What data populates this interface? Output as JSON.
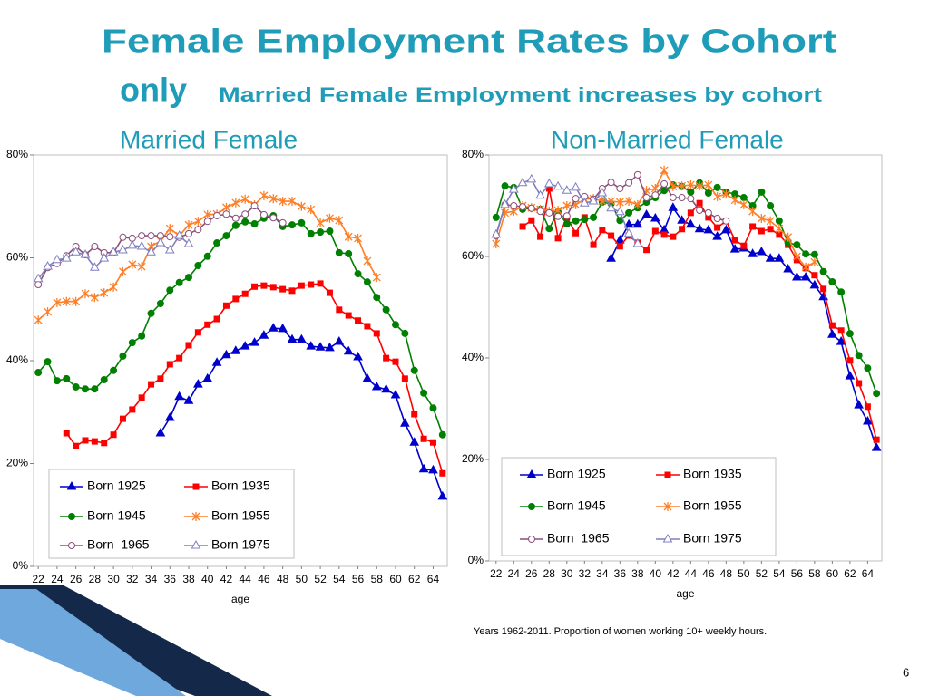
{
  "header": {
    "title": "Female Employment Rates by Cohort",
    "title_line2": "only",
    "subtitle": "Married Female Employment increases by cohort"
  },
  "footnote": "Years 1962-2011. Proportion of women working 10+ weekly hours.",
  "page_number": "6",
  "chart_data": [
    {
      "type": "line",
      "title": "Married Female",
      "x_label": "age",
      "x": [
        22,
        23,
        24,
        25,
        26,
        27,
        28,
        29,
        30,
        31,
        32,
        33,
        34,
        35,
        36,
        37,
        38,
        39,
        40,
        41,
        42,
        43,
        44,
        45,
        46,
        47,
        48,
        49,
        50,
        51,
        52,
        53,
        54,
        55,
        56,
        57,
        58,
        59,
        60,
        61,
        62,
        63,
        64,
        65
      ],
      "xlim": [
        21.5,
        65.5
      ],
      "xticks": [
        22,
        24,
        26,
        28,
        30,
        32,
        34,
        36,
        38,
        40,
        42,
        44,
        46,
        48,
        50,
        52,
        54,
        56,
        58,
        60,
        62,
        64
      ],
      "ylim": [
        0,
        80
      ],
      "yticks": [
        {
          "value": 0,
          "label": "0%"
        },
        {
          "value": 20,
          "label": "20%"
        },
        {
          "value": 40,
          "label": "40%"
        },
        {
          "value": 60,
          "label": "60%"
        },
        {
          "value": 80,
          "label": "80%"
        }
      ],
      "grid": false,
      "legend": "lower-left",
      "series": [
        {
          "name": "Born 1925",
          "color": "#0000cc",
          "marker": "triangle",
          "values": [
            null,
            null,
            null,
            null,
            null,
            null,
            null,
            null,
            null,
            null,
            null,
            null,
            null,
            25.9,
            28.9,
            33.0,
            32.2,
            35.4,
            36.5,
            39.6,
            41.1,
            41.9,
            42.8,
            43.5,
            44.9,
            46.3,
            46.2,
            44.1,
            44.1,
            42.8,
            42.6,
            42.5,
            43.7,
            41.8,
            40.7,
            36.5,
            34.9,
            34.4,
            33.3,
            27.8,
            24.1,
            18.9,
            18.7,
            13.6
          ]
        },
        {
          "name": "Born 1935",
          "color": "#ff0000",
          "marker": "square",
          "values": [
            null,
            null,
            null,
            25.9,
            23.4,
            24.5,
            24.3,
            24.0,
            25.6,
            28.7,
            30.5,
            32.8,
            35.4,
            36.5,
            39.3,
            40.5,
            43.0,
            45.5,
            47.0,
            48.1,
            50.7,
            52.0,
            53.0,
            54.4,
            54.6,
            54.3,
            53.9,
            53.6,
            54.6,
            54.8,
            55.0,
            53.2,
            49.9,
            48.8,
            47.8,
            46.7,
            45.3,
            40.5,
            39.8,
            36.5,
            29.6,
            24.8,
            24.1,
            18.1
          ]
        },
        {
          "name": "Born 1945",
          "color": "#008000",
          "marker": "circle",
          "values": [
            37.7,
            39.8,
            36.1,
            36.5,
            34.9,
            34.5,
            34.5,
            36.3,
            38.1,
            40.9,
            43.5,
            44.8,
            49.2,
            51.1,
            53.7,
            55.2,
            56.2,
            58.5,
            60.3,
            62.9,
            64.3,
            66.3,
            67.0,
            66.6,
            67.7,
            68.2,
            66.1,
            66.4,
            66.8,
            64.7,
            65.0,
            65.2,
            61.0,
            60.8,
            56.9,
            55.3,
            52.3,
            49.9,
            47.0,
            45.3,
            38.1,
            33.7,
            30.8,
            25.6
          ]
        },
        {
          "name": "Born 1955",
          "color": "#ff7f27",
          "marker": "star",
          "values": [
            47.9,
            49.5,
            51.3,
            51.5,
            51.5,
            53.0,
            52.3,
            53.2,
            54.3,
            57.3,
            58.7,
            58.3,
            62.2,
            63.3,
            65.7,
            64.3,
            66.4,
            67.1,
            68.4,
            68.5,
            69.8,
            70.7,
            71.4,
            70.3,
            72.1,
            71.5,
            71.0,
            71.0,
            70.0,
            69.4,
            66.8,
            67.7,
            67.3,
            64.1,
            63.8,
            59.4,
            56.2,
            null,
            null,
            null,
            null,
            null,
            null,
            null
          ]
        },
        {
          "name": "Born  1965",
          "color": "#8b4f7a",
          "marker": "open-circle",
          "values": [
            54.8,
            58.1,
            58.9,
            60.4,
            62.2,
            60.6,
            62.2,
            61.0,
            61.0,
            64.0,
            63.8,
            64.3,
            64.3,
            64.3,
            64.1,
            64.0,
            64.7,
            65.5,
            67.1,
            68.2,
            68.5,
            67.7,
            68.5,
            70.1,
            68.4,
            67.8,
            66.8,
            null,
            null,
            null,
            null,
            null,
            null,
            null,
            null,
            null,
            null,
            null,
            null,
            null,
            null,
            null,
            null,
            null
          ]
        },
        {
          "name": "Born 1975",
          "color": "#7f7fbf",
          "marker": "open-triangle",
          "values": [
            55.9,
            58.3,
            59.6,
            59.9,
            61.1,
            60.6,
            58.1,
            59.9,
            61.1,
            61.5,
            62.4,
            62.2,
            61.1,
            62.9,
            61.5,
            64.3,
            62.7,
            null,
            null,
            null,
            null,
            null,
            null,
            null,
            null,
            null,
            null,
            null,
            null,
            null,
            null,
            null,
            null,
            null,
            null,
            null,
            null,
            null,
            null,
            null,
            null,
            null,
            null,
            null
          ]
        }
      ]
    },
    {
      "type": "line",
      "title": "Non-Married Female",
      "x_label": "age",
      "x": [
        22,
        23,
        24,
        25,
        26,
        27,
        28,
        29,
        30,
        31,
        32,
        33,
        34,
        35,
        36,
        37,
        38,
        39,
        40,
        41,
        42,
        43,
        44,
        45,
        46,
        47,
        48,
        49,
        50,
        51,
        52,
        53,
        54,
        55,
        56,
        57,
        58,
        59,
        60,
        61,
        62,
        63,
        64,
        65
      ],
      "xlim": [
        21.2,
        65.6
      ],
      "xticks": [
        22,
        24,
        26,
        28,
        30,
        32,
        34,
        36,
        38,
        40,
        42,
        44,
        46,
        48,
        50,
        52,
        54,
        56,
        58,
        60,
        62,
        64
      ],
      "ylim": [
        0,
        80
      ],
      "yticks": [
        {
          "value": 0,
          "label": "0%"
        },
        {
          "value": 20,
          "label": "20%"
        },
        {
          "value": 40,
          "label": "40%"
        },
        {
          "value": 60,
          "label": "60%"
        },
        {
          "value": 80,
          "label": "80%"
        }
      ],
      "grid": false,
      "legend": "lower-left",
      "series": [
        {
          "name": "Born 1925",
          "color": "#0000cc",
          "marker": "triangle",
          "values": [
            null,
            null,
            null,
            null,
            null,
            null,
            null,
            null,
            null,
            null,
            null,
            null,
            null,
            59.6,
            63.2,
            66.3,
            66.3,
            68.2,
            67.5,
            65.2,
            69.6,
            67.1,
            66.3,
            65.4,
            65.2,
            63.9,
            65.2,
            61.4,
            61.6,
            60.5,
            60.9,
            59.6,
            59.6,
            57.5,
            55.9,
            55.9,
            54.3,
            52.0,
            44.6,
            43.2,
            36.4,
            30.7,
            27.5,
            22.3
          ]
        },
        {
          "name": "Born 1935",
          "color": "#ff0000",
          "marker": "square",
          "values": [
            null,
            null,
            null,
            65.9,
            67.1,
            63.9,
            73.4,
            63.6,
            67.7,
            64.6,
            67.7,
            62.3,
            65.2,
            64.1,
            62.0,
            64.1,
            62.7,
            61.3,
            65.0,
            64.3,
            63.9,
            65.4,
            68.6,
            70.5,
            67.7,
            65.7,
            67.0,
            63.2,
            62.1,
            65.9,
            65.0,
            65.4,
            64.3,
            62.3,
            59.3,
            57.7,
            56.3,
            53.6,
            46.4,
            45.4,
            39.5,
            35.0,
            30.4,
            23.9
          ]
        },
        {
          "name": "Born 1945",
          "color": "#008000",
          "marker": "circle",
          "values": [
            67.7,
            73.9,
            73.6,
            69.3,
            69.5,
            69.3,
            65.5,
            68.8,
            66.4,
            67.0,
            67.3,
            67.7,
            70.7,
            70.4,
            67.1,
            68.6,
            69.6,
            70.7,
            71.6,
            73.0,
            74.1,
            73.8,
            72.7,
            74.5,
            72.5,
            73.6,
            72.7,
            72.3,
            71.6,
            70.0,
            72.7,
            70.0,
            67.0,
            62.7,
            62.3,
            60.5,
            60.4,
            57.0,
            55.0,
            53.0,
            44.8,
            40.5,
            38.0,
            33.0
          ]
        },
        {
          "name": "Born 1955",
          "color": "#ff7f27",
          "marker": "star",
          "values": [
            62.5,
            68.6,
            68.9,
            70.0,
            69.6,
            69.3,
            68.9,
            69.1,
            70.0,
            70.2,
            71.3,
            71.4,
            70.9,
            70.9,
            70.7,
            70.9,
            70.2,
            73.0,
            73.4,
            77.0,
            73.8,
            73.9,
            74.1,
            73.9,
            74.1,
            71.8,
            72.3,
            71.1,
            70.2,
            68.9,
            67.5,
            67.0,
            65.5,
            63.8,
            60.0,
            57.9,
            58.9,
            null,
            null,
            null,
            null,
            null,
            null,
            null
          ]
        },
        {
          "name": "Born  1965",
          "color": "#8b4f7a",
          "marker": "open-circle",
          "values": [
            64.1,
            70.2,
            70.0,
            69.8,
            69.5,
            68.9,
            68.6,
            67.9,
            68.0,
            71.4,
            71.8,
            71.3,
            73.4,
            74.6,
            73.4,
            74.5,
            76.1,
            71.6,
            72.1,
            74.3,
            71.6,
            71.6,
            71.4,
            69.1,
            68.6,
            67.5,
            67.0,
            null,
            null,
            null,
            null,
            null,
            null,
            null,
            null,
            null,
            null,
            null,
            null,
            null,
            null,
            null,
            null,
            null
          ]
        },
        {
          "name": "Born 1975",
          "color": "#7f7fbf",
          "marker": "open-triangle",
          "values": [
            64.3,
            70.2,
            73.2,
            74.5,
            75.2,
            72.0,
            74.3,
            73.8,
            73.0,
            73.6,
            70.5,
            70.9,
            72.5,
            69.5,
            68.8,
            64.5,
            62.5,
            null,
            null,
            null,
            null,
            null,
            null,
            null,
            null,
            null,
            null,
            null,
            null,
            null,
            null,
            null,
            null,
            null,
            null,
            null,
            null,
            null,
            null,
            null,
            null,
            null,
            null,
            null
          ]
        }
      ]
    }
  ]
}
